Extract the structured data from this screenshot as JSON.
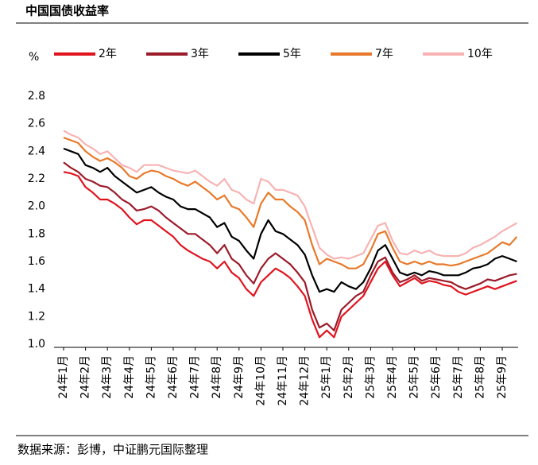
{
  "chart_data": {
    "type": "line",
    "title": "中国国债收益率",
    "y_label": "%",
    "source": "数据来源：彭博，中证鹏元国际整理",
    "categories": [
      "24年1月",
      null,
      null,
      "24年2月",
      null,
      null,
      "24年3月",
      null,
      null,
      "24年4月",
      null,
      null,
      "24年5月",
      null,
      null,
      "24年6月",
      null,
      null,
      "24年7月",
      null,
      null,
      "24年8月",
      null,
      null,
      "24年9月",
      null,
      null,
      "24年10月",
      null,
      null,
      "24年11月",
      null,
      null,
      "24年12月",
      null,
      null,
      "25年1月",
      null,
      null,
      "25年2月",
      null,
      null,
      "25年3月",
      null,
      null,
      "25年4月",
      null,
      null,
      "25年5月",
      null,
      null,
      "25年6月",
      null,
      null,
      "25年7月",
      null,
      null,
      "25年8月",
      null,
      null,
      "25年9月",
      null,
      null
    ],
    "series": [
      {
        "name": "2年",
        "color": "#e0141e",
        "values": [
          2.25,
          2.24,
          2.22,
          2.14,
          2.1,
          2.05,
          2.05,
          2.02,
          1.98,
          1.92,
          1.87,
          1.9,
          1.9,
          1.86,
          1.82,
          1.78,
          1.72,
          1.68,
          1.65,
          1.62,
          1.6,
          1.55,
          1.6,
          1.52,
          1.48,
          1.4,
          1.35,
          1.45,
          1.5,
          1.55,
          1.52,
          1.48,
          1.42,
          1.35,
          1.18,
          1.05,
          1.1,
          1.05,
          1.2,
          1.25,
          1.3,
          1.35,
          1.45,
          1.55,
          1.6,
          1.5,
          1.42,
          1.45,
          1.48,
          1.44,
          1.46,
          1.45,
          1.43,
          1.42,
          1.38,
          1.36,
          1.38,
          1.4,
          1.42,
          1.4,
          1.42,
          1.44,
          1.46
        ]
      },
      {
        "name": "3年",
        "color": "#9b1b2a",
        "values": [
          2.32,
          2.28,
          2.25,
          2.2,
          2.18,
          2.15,
          2.14,
          2.1,
          2.05,
          2.02,
          1.97,
          1.98,
          2.0,
          1.97,
          1.92,
          1.88,
          1.84,
          1.8,
          1.8,
          1.76,
          1.72,
          1.66,
          1.72,
          1.62,
          1.58,
          1.5,
          1.44,
          1.55,
          1.62,
          1.66,
          1.62,
          1.58,
          1.52,
          1.45,
          1.25,
          1.12,
          1.15,
          1.1,
          1.25,
          1.3,
          1.35,
          1.38,
          1.5,
          1.6,
          1.63,
          1.52,
          1.45,
          1.47,
          1.5,
          1.46,
          1.48,
          1.47,
          1.46,
          1.45,
          1.42,
          1.4,
          1.42,
          1.44,
          1.47,
          1.46,
          1.48,
          1.5,
          1.51
        ]
      },
      {
        "name": "5年",
        "color": "#000000",
        "values": [
          2.42,
          2.4,
          2.38,
          2.3,
          2.28,
          2.25,
          2.28,
          2.22,
          2.18,
          2.14,
          2.1,
          2.12,
          2.14,
          2.1,
          2.07,
          2.05,
          2.0,
          1.98,
          1.98,
          1.95,
          1.92,
          1.85,
          1.88,
          1.78,
          1.75,
          1.68,
          1.62,
          1.8,
          1.9,
          1.82,
          1.8,
          1.76,
          1.72,
          1.65,
          1.5,
          1.38,
          1.4,
          1.38,
          1.45,
          1.42,
          1.4,
          1.45,
          1.55,
          1.68,
          1.72,
          1.62,
          1.52,
          1.5,
          1.52,
          1.5,
          1.53,
          1.52,
          1.5,
          1.5,
          1.5,
          1.52,
          1.55,
          1.56,
          1.58,
          1.62,
          1.64,
          1.62,
          1.6
        ]
      },
      {
        "name": "7年",
        "color": "#e8792a",
        "values": [
          2.5,
          2.48,
          2.46,
          2.4,
          2.36,
          2.33,
          2.35,
          2.32,
          2.28,
          2.22,
          2.2,
          2.24,
          2.26,
          2.25,
          2.22,
          2.2,
          2.17,
          2.15,
          2.18,
          2.14,
          2.1,
          2.05,
          2.08,
          2.0,
          1.98,
          1.92,
          1.85,
          2.02,
          2.1,
          2.05,
          2.05,
          2.0,
          1.96,
          1.9,
          1.72,
          1.58,
          1.62,
          1.6,
          1.58,
          1.55,
          1.55,
          1.58,
          1.68,
          1.8,
          1.82,
          1.7,
          1.6,
          1.58,
          1.6,
          1.58,
          1.6,
          1.58,
          1.58,
          1.57,
          1.58,
          1.6,
          1.62,
          1.64,
          1.66,
          1.7,
          1.74,
          1.72,
          1.78
        ]
      },
      {
        "name": "10年",
        "color": "#f7b3b3",
        "values": [
          2.55,
          2.52,
          2.5,
          2.45,
          2.42,
          2.38,
          2.4,
          2.35,
          2.3,
          2.28,
          2.25,
          2.3,
          2.3,
          2.3,
          2.28,
          2.26,
          2.25,
          2.24,
          2.26,
          2.22,
          2.18,
          2.15,
          2.2,
          2.12,
          2.1,
          2.05,
          2.02,
          2.2,
          2.18,
          2.12,
          2.12,
          2.1,
          2.08,
          2.0,
          1.85,
          1.7,
          1.65,
          1.62,
          1.63,
          1.62,
          1.64,
          1.66,
          1.76,
          1.86,
          1.88,
          1.75,
          1.66,
          1.65,
          1.68,
          1.66,
          1.68,
          1.65,
          1.64,
          1.64,
          1.64,
          1.66,
          1.7,
          1.72,
          1.75,
          1.78,
          1.82,
          1.85,
          1.88
        ]
      }
    ],
    "ylim": [
      1,
      2.8
    ],
    "yticks": [
      {
        "value": 1,
        "label": "1.0"
      },
      1.2,
      1.4,
      1.6,
      1.8,
      {
        "value": 2,
        "label": "2.0"
      },
      2.2,
      2.4,
      2.6,
      2.8
    ]
  }
}
